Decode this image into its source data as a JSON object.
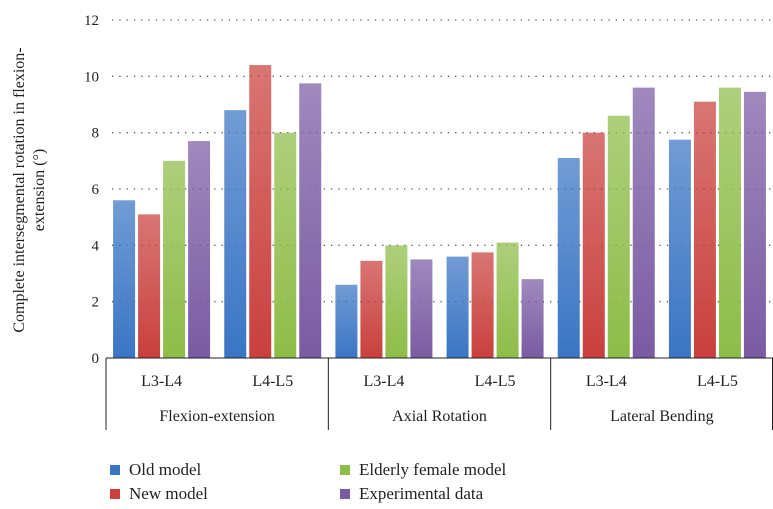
{
  "chart_data": {
    "type": "bar",
    "ylabel_lines": [
      "Complete intersegmental rotation in flexion-",
      "extension (°)"
    ],
    "ylim": [
      0,
      12
    ],
    "yticks": [
      0,
      2,
      4,
      6,
      8,
      10,
      12
    ],
    "grid": "dotted-horizontal",
    "legend_position": "bottom",
    "groups": [
      {
        "label": "Flexion-extension",
        "categories": [
          "L3-L4",
          "L4-L5"
        ]
      },
      {
        "label": "Axial Rotation",
        "categories": [
          "L3-L4",
          "L4-L5"
        ]
      },
      {
        "label": "Lateral Bending",
        "categories": [
          "L3-L4",
          "L4-L5"
        ]
      }
    ],
    "series": [
      {
        "name": "Old model",
        "color": "#3a75c4",
        "values": [
          5.6,
          8.8,
          2.6,
          3.6,
          7.1,
          7.75
        ]
      },
      {
        "name": "New model",
        "color": "#c9403d",
        "values": [
          5.1,
          10.4,
          3.45,
          3.75,
          8.0,
          9.1
        ]
      },
      {
        "name": "Elderly female model",
        "color": "#8ebc48",
        "values": [
          7.0,
          8.0,
          4.0,
          4.1,
          8.6,
          9.6
        ]
      },
      {
        "name": "Experimental data",
        "color": "#7a5ba3",
        "values": [
          7.7,
          9.75,
          3.5,
          2.8,
          9.6,
          9.45
        ]
      }
    ]
  }
}
